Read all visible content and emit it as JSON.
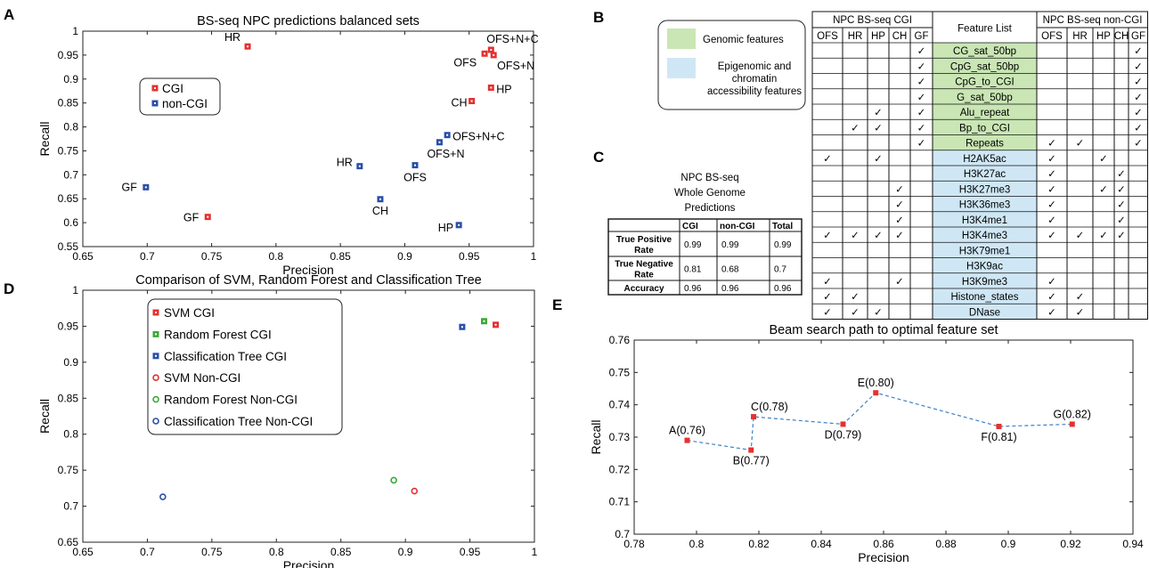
{
  "panels": {
    "A": "A",
    "B": "B",
    "C": "C",
    "D": "D",
    "E": "E"
  },
  "colors": {
    "cgi": "#e53030",
    "noncgi": "#2b4fa8",
    "green": "#3aaa35",
    "blue_ct": "#2b4fa8",
    "genomic": "#c9e6b4",
    "epigenomic": "#cfe7f5",
    "path": "#3f7fc4"
  },
  "chart_data": [
    {
      "id": "A",
      "type": "scatter",
      "title": "BS-seq NPC predictions balanced sets",
      "xlabel": "Precision",
      "ylabel": "Recall",
      "xlim": [
        0.65,
        1
      ],
      "ylim": [
        0.55,
        1
      ],
      "xticks": [
        "0.65",
        "0.7",
        "0.75",
        "0.8",
        "0.85",
        "0.9",
        "0.95",
        "1"
      ],
      "yticks": [
        "0.55",
        "0.6",
        "0.65",
        "0.7",
        "0.75",
        "0.8",
        "0.85",
        "0.9",
        "0.95",
        "1"
      ],
      "legend": [
        "CGI",
        "non-CGI"
      ],
      "series": [
        {
          "name": "CGI",
          "points": [
            {
              "label": "HR",
              "x": 0.778,
              "y": 0.968
            },
            {
              "label": "OFS+N+C",
              "x": 0.967,
              "y": 0.961
            },
            {
              "label": "OFS",
              "x": 0.962,
              "y": 0.953
            },
            {
              "label": "OFS+N",
              "x": 0.969,
              "y": 0.95
            },
            {
              "label": "CH",
              "x": 0.952,
              "y": 0.854
            },
            {
              "label": "HP",
              "x": 0.967,
              "y": 0.882
            },
            {
              "label": "GF",
              "x": 0.747,
              "y": 0.612
            }
          ]
        },
        {
          "name": "non-CGI",
          "points": [
            {
              "label": "GF",
              "x": 0.699,
              "y": 0.674
            },
            {
              "label": "HR",
              "x": 0.865,
              "y": 0.718
            },
            {
              "label": "CH",
              "x": 0.881,
              "y": 0.649
            },
            {
              "label": "OFS",
              "x": 0.908,
              "y": 0.72
            },
            {
              "label": "OFS+N",
              "x": 0.927,
              "y": 0.768
            },
            {
              "label": "OFS+N+C",
              "x": 0.933,
              "y": 0.783
            },
            {
              "label": "HP",
              "x": 0.942,
              "y": 0.595
            }
          ]
        }
      ]
    },
    {
      "id": "D",
      "type": "scatter",
      "title": "Comparison of SVM, Random Forest and Classification Tree",
      "xlabel": "Precision",
      "ylabel": "Recall",
      "xlim": [
        0.65,
        1
      ],
      "ylim": [
        0.65,
        1
      ],
      "xticks": [
        "0.65",
        "0.7",
        "0.75",
        "0.8",
        "0.85",
        "0.9",
        "0.95",
        "1"
      ],
      "yticks": [
        "0.65",
        "0.7",
        "0.75",
        "0.8",
        "0.85",
        "0.9",
        "0.95",
        "1"
      ],
      "series": [
        {
          "name": "SVM CGI",
          "color": "#e53030",
          "marker": "square",
          "x": 0.97,
          "y": 0.952
        },
        {
          "name": "Random Forest CGI",
          "color": "#3aaa35",
          "marker": "square",
          "x": 0.961,
          "y": 0.957
        },
        {
          "name": "Classification Tree CGI",
          "color": "#2b4fa8",
          "marker": "square",
          "x": 0.944,
          "y": 0.949
        },
        {
          "name": "SVM Non-CGI",
          "color": "#e53030",
          "marker": "circle",
          "x": 0.907,
          "y": 0.721
        },
        {
          "name": "Random Forest Non-CGI",
          "color": "#3aaa35",
          "marker": "circle",
          "x": 0.891,
          "y": 0.736
        },
        {
          "name": "Classification Tree Non-CGI",
          "color": "#2b4fa8",
          "marker": "circle",
          "x": 0.712,
          "y": 0.713
        }
      ]
    },
    {
      "id": "E",
      "type": "line",
      "title": "Beam search path to optimal feature set",
      "xlabel": "Precision",
      "ylabel": "Recall",
      "xlim": [
        0.78,
        0.94
      ],
      "ylim": [
        0.7,
        0.76
      ],
      "xticks": [
        "0.78",
        "0.8",
        "0.82",
        "0.84",
        "0.86",
        "0.88",
        "0.9",
        "0.92",
        "0.94"
      ],
      "yticks": [
        "0.7",
        "0.71",
        "0.72",
        "0.73",
        "0.74",
        "0.75",
        "0.76"
      ],
      "points": [
        {
          "label": "A(0.76)",
          "x": 0.797,
          "y": 0.729,
          "pos": "above"
        },
        {
          "label": "B(0.77)",
          "x": 0.8175,
          "y": 0.726,
          "pos": "below"
        },
        {
          "label": "C(0.78)",
          "x": 0.8183,
          "y": 0.7363,
          "pos": "right"
        },
        {
          "label": "D(0.79)",
          "x": 0.847,
          "y": 0.734,
          "pos": "below"
        },
        {
          "label": "E(0.80)",
          "x": 0.8575,
          "y": 0.7437,
          "pos": "above"
        },
        {
          "label": "F(0.81)",
          "x": 0.897,
          "y": 0.7333,
          "pos": "below"
        },
        {
          "label": "G(0.82)",
          "x": 0.9205,
          "y": 0.734,
          "pos": "above"
        }
      ]
    }
  ],
  "table_c": {
    "title_lines": [
      "NPC BS-seq",
      "Whole Genome",
      "Predictions"
    ],
    "headers": [
      "",
      "CGI",
      "non-CGI",
      "Total"
    ],
    "rows": [
      {
        "label": [
          "True Positive",
          "Rate"
        ],
        "values": [
          "0.99",
          "0.99",
          "0.99"
        ]
      },
      {
        "label": [
          "True Negative",
          "Rate"
        ],
        "values": [
          "0.81",
          "0.68",
          "0.7"
        ]
      },
      {
        "label": [
          "Accuracy"
        ],
        "values": [
          "0.96",
          "0.96",
          "0.96"
        ]
      }
    ]
  },
  "table_b": {
    "legend": {
      "genomic": "Genomic features",
      "epigenomic_lines": [
        "Epigenomic and",
        "chromatin",
        "accessibility features"
      ]
    },
    "left_group": "NPC BS-seq CGI",
    "feature_header": "Feature List",
    "right_group": "NPC BS-seq non-CGI",
    "cols": [
      "OFS",
      "HR",
      "HP",
      "CH",
      "GF"
    ],
    "check": "✓",
    "rows": [
      {
        "feature": "CG_sat_50bp",
        "kind": "genomic",
        "left": [
          0,
          0,
          0,
          0,
          1
        ],
        "right": [
          0,
          0,
          0,
          0,
          1
        ]
      },
      {
        "feature": "CpG_sat_50bp",
        "kind": "genomic",
        "left": [
          0,
          0,
          0,
          0,
          1
        ],
        "right": [
          0,
          0,
          0,
          0,
          1
        ]
      },
      {
        "feature": "CpG_to_CGI",
        "kind": "genomic",
        "left": [
          0,
          0,
          0,
          0,
          1
        ],
        "right": [
          0,
          0,
          0,
          0,
          1
        ]
      },
      {
        "feature": "G_sat_50bp",
        "kind": "genomic",
        "left": [
          0,
          0,
          0,
          0,
          1
        ],
        "right": [
          0,
          0,
          0,
          0,
          1
        ]
      },
      {
        "feature": "Alu_repeat",
        "kind": "genomic",
        "left": [
          0,
          0,
          1,
          0,
          1
        ],
        "right": [
          0,
          0,
          0,
          0,
          1
        ]
      },
      {
        "feature": "Bp_to_CGI",
        "kind": "genomic",
        "left": [
          0,
          1,
          1,
          0,
          1
        ],
        "right": [
          0,
          0,
          0,
          0,
          1
        ]
      },
      {
        "feature": "Repeats",
        "kind": "genomic",
        "left": [
          0,
          0,
          0,
          0,
          1
        ],
        "right": [
          1,
          1,
          0,
          0,
          1
        ]
      },
      {
        "feature": "H2AK5ac",
        "kind": "epigenomic",
        "left": [
          1,
          0,
          1,
          0,
          0
        ],
        "right": [
          1,
          0,
          1,
          0,
          0
        ]
      },
      {
        "feature": "H3K27ac",
        "kind": "epigenomic",
        "left": [
          0,
          0,
          0,
          0,
          0
        ],
        "right": [
          1,
          0,
          0,
          1,
          0
        ]
      },
      {
        "feature": "H3K27me3",
        "kind": "epigenomic",
        "left": [
          0,
          0,
          0,
          1,
          0
        ],
        "right": [
          1,
          0,
          1,
          1,
          0
        ]
      },
      {
        "feature": "H3K36me3",
        "kind": "epigenomic",
        "left": [
          0,
          0,
          0,
          1,
          0
        ],
        "right": [
          1,
          0,
          0,
          1,
          0
        ]
      },
      {
        "feature": "H3K4me1",
        "kind": "epigenomic",
        "left": [
          0,
          0,
          0,
          1,
          0
        ],
        "right": [
          1,
          0,
          0,
          1,
          0
        ]
      },
      {
        "feature": "H3K4me3",
        "kind": "epigenomic",
        "left": [
          1,
          1,
          1,
          1,
          0
        ],
        "right": [
          1,
          1,
          1,
          1,
          0
        ]
      },
      {
        "feature": "H3K79me1",
        "kind": "epigenomic",
        "left": [
          0,
          0,
          0,
          0,
          0
        ],
        "right": [
          0,
          0,
          0,
          0,
          0
        ]
      },
      {
        "feature": "H3K9ac",
        "kind": "epigenomic",
        "left": [
          0,
          0,
          0,
          0,
          0
        ],
        "right": [
          0,
          0,
          0,
          0,
          0
        ]
      },
      {
        "feature": "H3K9me3",
        "kind": "epigenomic",
        "left": [
          1,
          0,
          0,
          1,
          0
        ],
        "right": [
          1,
          0,
          0,
          0,
          0
        ]
      },
      {
        "feature": "Histone_states",
        "kind": "epigenomic",
        "left": [
          1,
          1,
          0,
          0,
          0
        ],
        "right": [
          1,
          1,
          0,
          0,
          0
        ]
      },
      {
        "feature": "DNase",
        "kind": "epigenomic",
        "left": [
          1,
          1,
          1,
          0,
          0
        ],
        "right": [
          1,
          1,
          0,
          0,
          0
        ]
      }
    ]
  }
}
